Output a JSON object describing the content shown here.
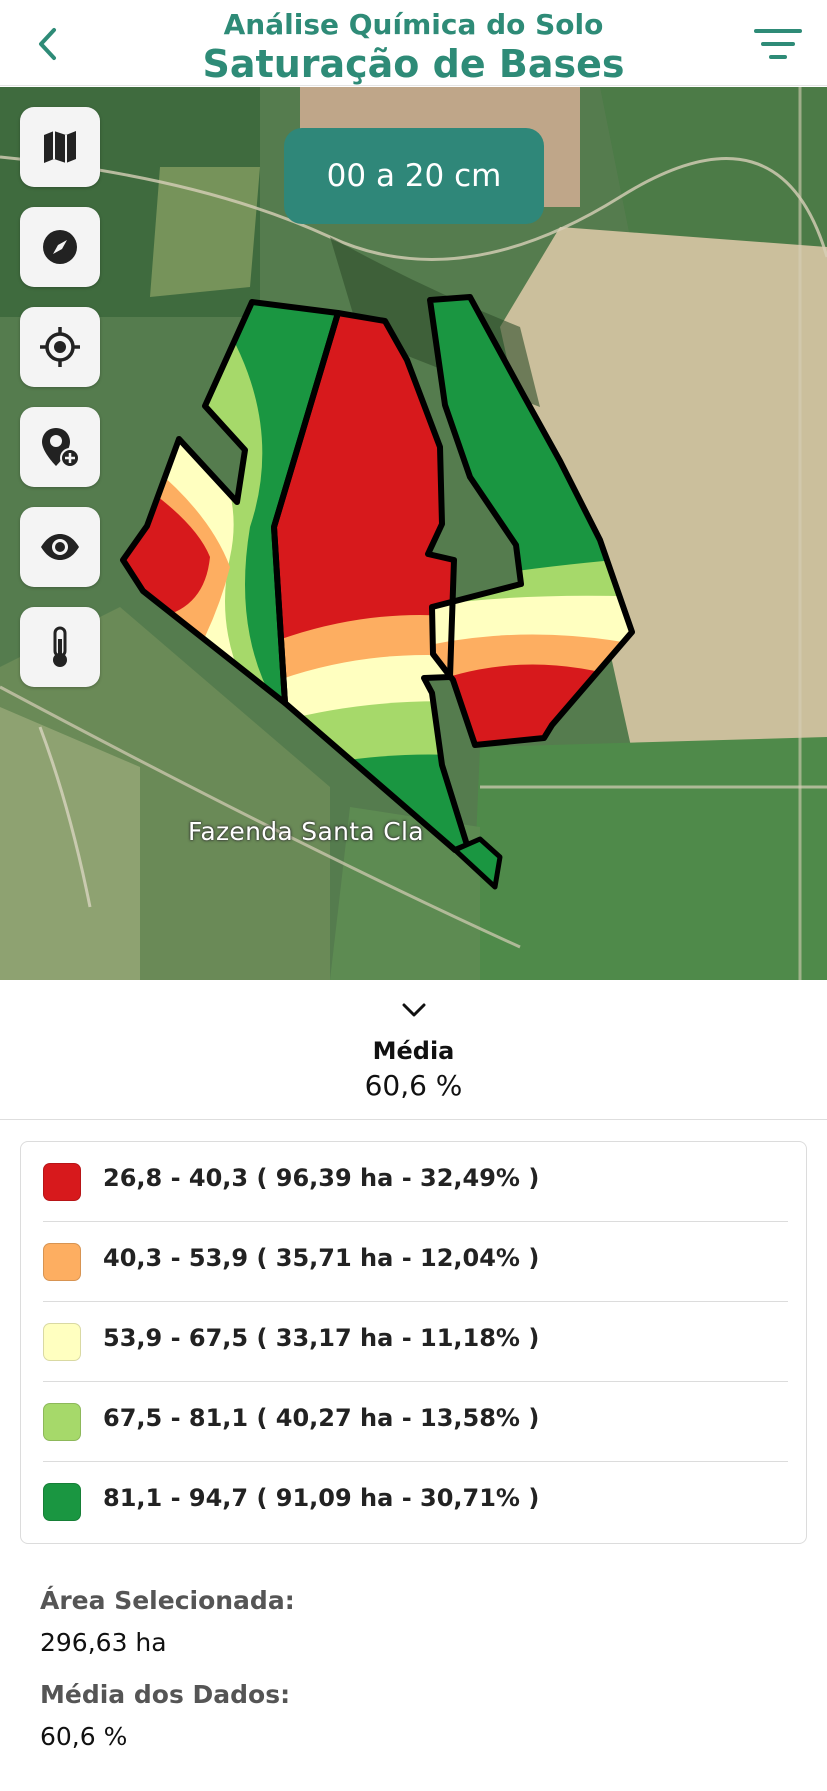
{
  "header": {
    "subtitle": "Análise Química do Solo",
    "title": "Saturação de Bases",
    "back_icon": "chevron-left-icon",
    "filter_icon": "filter-icon",
    "accent_color": "#2e8b77"
  },
  "map": {
    "depth_label": "00 a 20 cm",
    "farm_label": "Fazenda Santa Cla",
    "tools": [
      {
        "name": "map-layers-icon"
      },
      {
        "name": "compass-icon"
      },
      {
        "name": "my-location-icon"
      },
      {
        "name": "add-point-icon"
      },
      {
        "name": "visibility-icon"
      },
      {
        "name": "thermometer-icon"
      }
    ]
  },
  "summary": {
    "label": "Média",
    "value": "60,6 %"
  },
  "legend": [
    {
      "color": "#d7191c",
      "text": "26,8 - 40,3 ( 96,39 ha - 32,49% )"
    },
    {
      "color": "#fdae61",
      "text": "40,3 - 53,9 ( 35,71 ha - 12,04% )"
    },
    {
      "color": "#ffffc0",
      "text": "53,9 - 67,5 ( 33,17 ha - 11,18% )"
    },
    {
      "color": "#a6d96a",
      "text": "67,5 - 81,1 ( 40,27 ha - 13,58% )"
    },
    {
      "color": "#1a9641",
      "text": "81,1 - 94,7 ( 91,09 ha - 30,71% )"
    }
  ],
  "stats": {
    "area_label": "Área Selecionada:",
    "area_value": "296,63 ha",
    "mean_label": "Média dos Dados:",
    "mean_value": "60,6 %"
  }
}
